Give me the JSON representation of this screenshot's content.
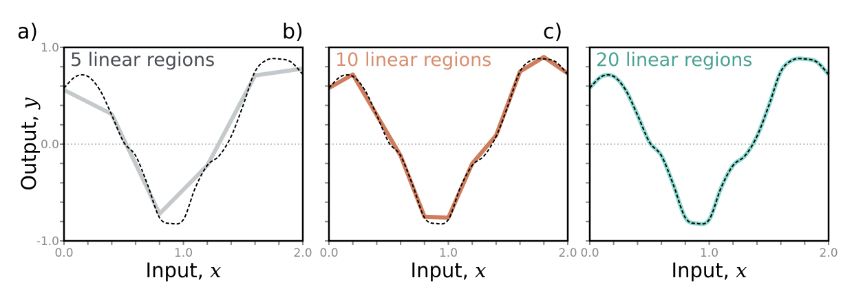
{
  "shared": {
    "y_axis_label": "Output,",
    "y_axis_var": "y",
    "x_axis_label": "Input,",
    "x_axis_var": "x",
    "x_ticks": [
      "0.0",
      "1.0",
      "2.0"
    ],
    "y_ticks": [
      "1.0",
      "0.0",
      "-1.0"
    ]
  },
  "colors": {
    "panel_a": "#c4cacc",
    "panel_b": "#cf7d5c",
    "panel_c": "#88d8ce",
    "title_a": "#4a4f55",
    "title_b": "#d88e6e",
    "title_c": "#4aa294",
    "target": "#000000",
    "zero_line": "#b0b0b0"
  },
  "chart_data": [
    {
      "type": "line",
      "panel_label": "a)",
      "title": "5 linear regions",
      "xlabel": "Input, x",
      "ylabel": "Output, y",
      "xlim": [
        0,
        2
      ],
      "ylim": [
        -1,
        1
      ],
      "target_function": {
        "x": [
          0.0,
          0.1,
          0.2,
          0.3,
          0.4,
          0.5,
          0.6,
          0.7,
          0.8,
          0.9,
          1.0,
          1.1,
          1.2,
          1.3,
          1.4,
          1.5,
          1.6,
          1.7,
          1.8,
          1.9,
          2.0
        ],
        "y": [
          0.58,
          0.7,
          0.7,
          0.56,
          0.3,
          0.02,
          -0.12,
          -0.42,
          -0.76,
          -0.82,
          -0.78,
          -0.45,
          -0.22,
          -0.12,
          0.08,
          0.4,
          0.75,
          0.87,
          0.88,
          0.85,
          0.72
        ]
      },
      "approximation": {
        "x": [
          0.0,
          0.4,
          0.8,
          1.2,
          1.6,
          2.0
        ],
        "y": [
          0.56,
          0.31,
          -0.72,
          -0.22,
          0.71,
          0.78
        ]
      }
    },
    {
      "type": "line",
      "panel_label": "b)",
      "title": "10 linear regions",
      "xlabel": "Input, x",
      "ylabel": "Output, y",
      "xlim": [
        0,
        2
      ],
      "ylim": [
        -1,
        1
      ],
      "target_function": {
        "x": [
          0.0,
          0.1,
          0.2,
          0.3,
          0.4,
          0.5,
          0.6,
          0.7,
          0.8,
          0.9,
          1.0,
          1.1,
          1.2,
          1.3,
          1.4,
          1.5,
          1.6,
          1.7,
          1.8,
          1.9,
          2.0
        ],
        "y": [
          0.58,
          0.7,
          0.7,
          0.56,
          0.3,
          0.02,
          -0.12,
          -0.42,
          -0.76,
          -0.82,
          -0.78,
          -0.45,
          -0.22,
          -0.12,
          0.08,
          0.4,
          0.75,
          0.87,
          0.88,
          0.85,
          0.72
        ]
      },
      "approximation": {
        "x": [
          0.0,
          0.2,
          0.4,
          0.6,
          0.8,
          1.0,
          1.2,
          1.4,
          1.6,
          1.8,
          2.0
        ],
        "y": [
          0.58,
          0.72,
          0.3,
          -0.12,
          -0.75,
          -0.76,
          -0.2,
          0.09,
          0.75,
          0.9,
          0.73
        ]
      }
    },
    {
      "type": "line",
      "panel_label": "c)",
      "title": "20 linear regions",
      "xlabel": "Input, x",
      "ylabel": "Output, y",
      "xlim": [
        0,
        2
      ],
      "ylim": [
        -1,
        1
      ],
      "target_function": {
        "x": [
          0.0,
          0.1,
          0.2,
          0.3,
          0.4,
          0.5,
          0.6,
          0.7,
          0.8,
          0.9,
          1.0,
          1.1,
          1.2,
          1.3,
          1.4,
          1.5,
          1.6,
          1.7,
          1.8,
          1.9,
          2.0
        ],
        "y": [
          0.58,
          0.7,
          0.7,
          0.56,
          0.3,
          0.02,
          -0.12,
          -0.42,
          -0.76,
          -0.82,
          -0.78,
          -0.45,
          -0.22,
          -0.12,
          0.08,
          0.4,
          0.75,
          0.87,
          0.88,
          0.85,
          0.72
        ]
      },
      "approximation": {
        "x": [
          0.0,
          0.1,
          0.2,
          0.3,
          0.4,
          0.5,
          0.6,
          0.7,
          0.8,
          0.9,
          1.0,
          1.1,
          1.2,
          1.3,
          1.4,
          1.5,
          1.6,
          1.7,
          1.8,
          1.9,
          2.0
        ],
        "y": [
          0.58,
          0.7,
          0.7,
          0.56,
          0.3,
          0.02,
          -0.12,
          -0.42,
          -0.76,
          -0.82,
          -0.78,
          -0.45,
          -0.22,
          -0.12,
          0.08,
          0.4,
          0.75,
          0.87,
          0.88,
          0.85,
          0.72
        ]
      }
    }
  ]
}
